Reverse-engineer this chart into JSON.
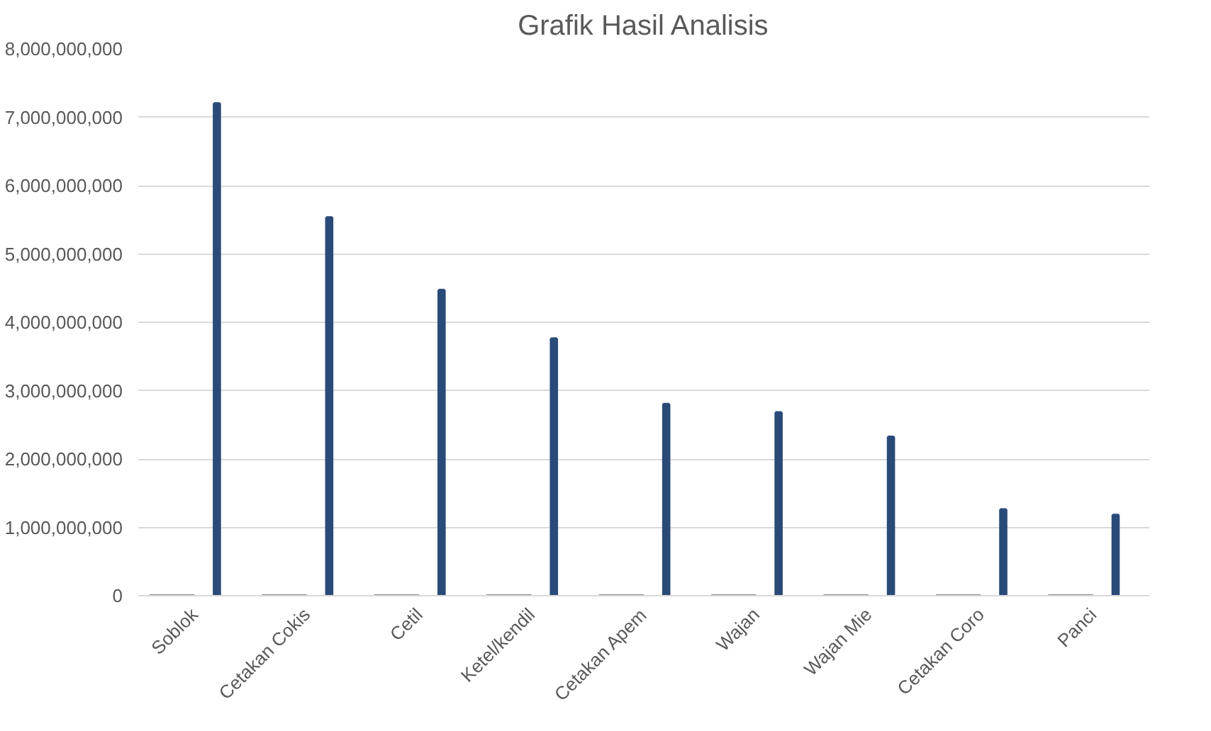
{
  "chart_data": {
    "type": "bar",
    "title": "Grafik Hasil Analisis",
    "categories": [
      "Soblok",
      "Cetakan Cokis",
      "Cetil",
      "Ketel/kendil",
      "Cetakan Apem",
      "Wajan",
      "Wajan Mie",
      "Cetakan Coro",
      "Panci"
    ],
    "series": [
      {
        "color": "#8c8c8c",
        "values": [
          0,
          0,
          0,
          0,
          0,
          0,
          0,
          0,
          0
        ]
      },
      {
        "color": "#2a4a78",
        "values": [
          7200000000,
          5530000000,
          4470000000,
          3760000000,
          2800000000,
          2680000000,
          2320000000,
          1260000000,
          1180000000
        ]
      }
    ],
    "ylim": [
      0,
      8000000000
    ],
    "yticks": [
      {
        "value": 0,
        "label": "0"
      },
      {
        "value": 1000000000,
        "label": "1,000,000,000"
      },
      {
        "value": 2000000000,
        "label": "2,000,000,000"
      },
      {
        "value": 3000000000,
        "label": "3,000,000,000"
      },
      {
        "value": 4000000000,
        "label": "4,000,000,000"
      },
      {
        "value": 5000000000,
        "label": "5,000,000,000"
      },
      {
        "value": 6000000000,
        "label": "6,000,000,000"
      },
      {
        "value": 7000000000,
        "label": "7,000,000,000"
      },
      {
        "value": 8000000000,
        "label": "8,000,000,000"
      }
    ],
    "grid": "y"
  }
}
